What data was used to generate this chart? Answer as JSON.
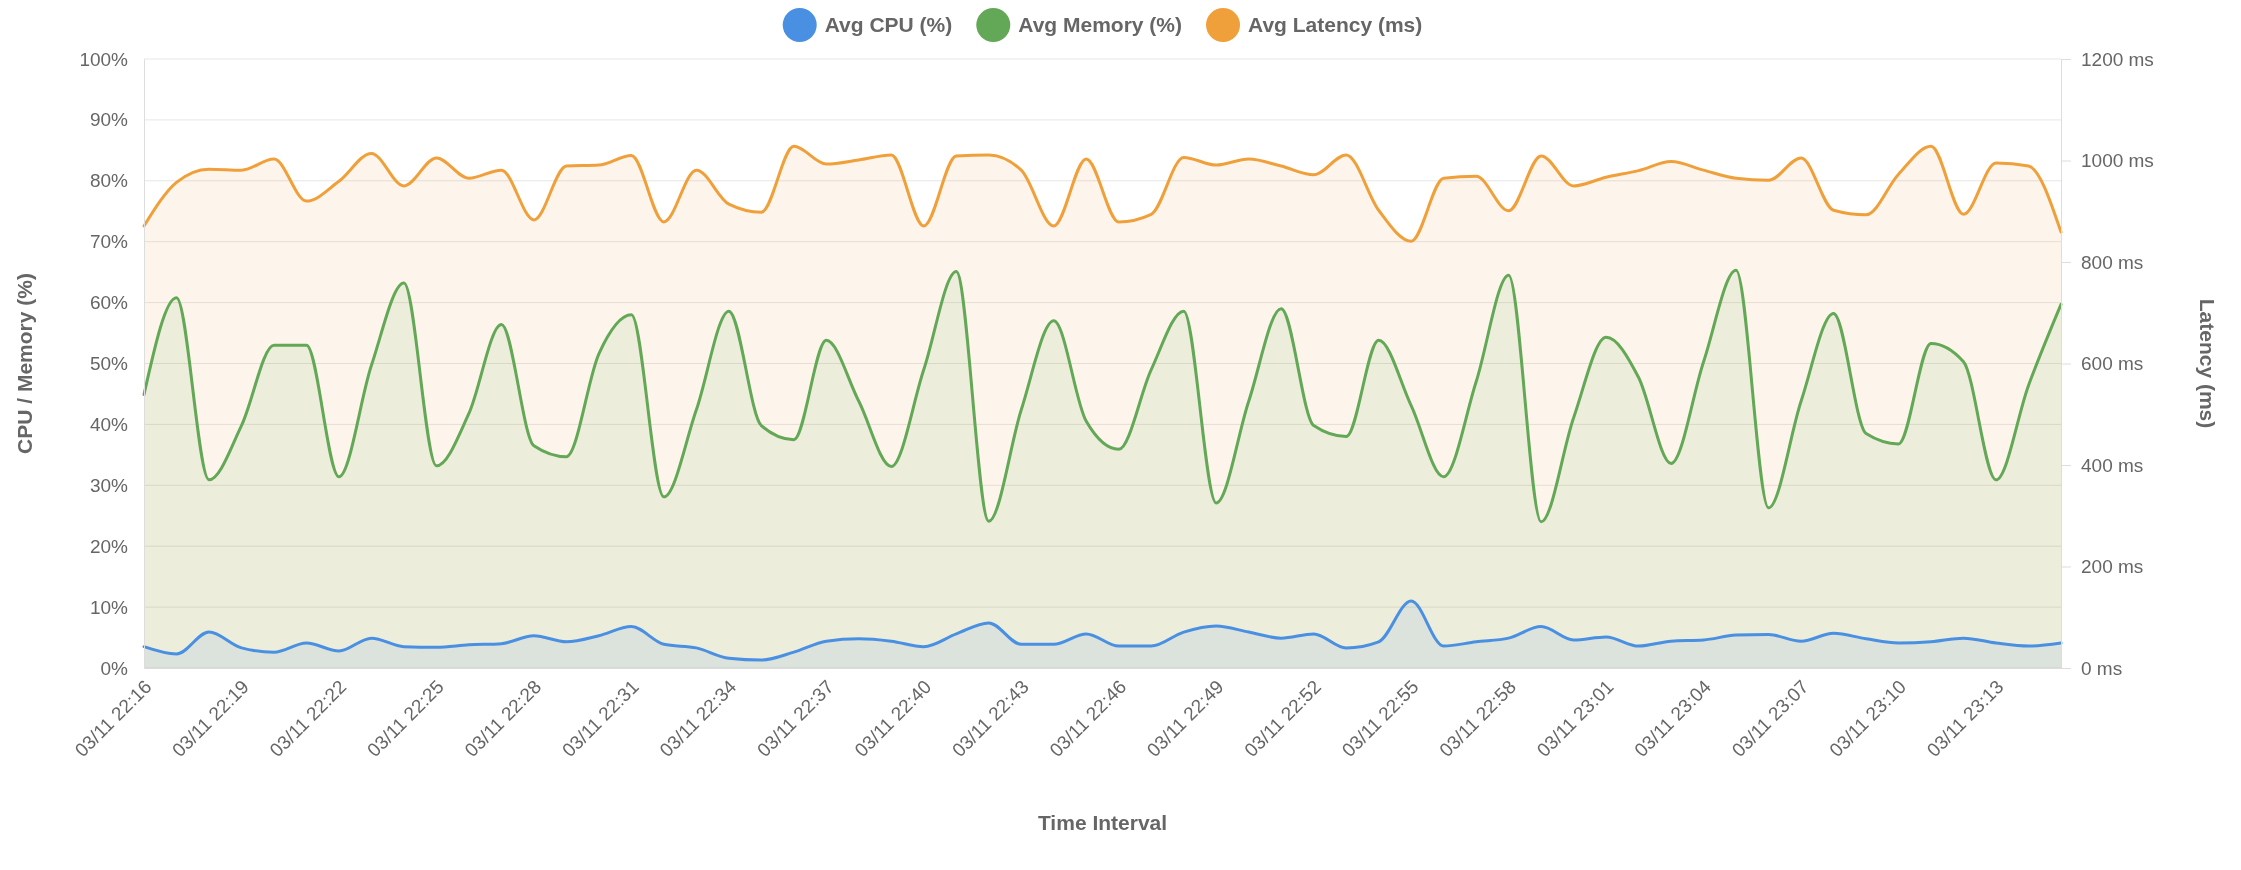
{
  "chart_data": {
    "type": "area",
    "xlabel": "Time Interval",
    "ylabel": "CPU / Memory (%)",
    "y2label": "Latency (ms)",
    "categories": [
      "03/11 22:16",
      null,
      null,
      "03/11 22:19",
      null,
      null,
      "03/11 22:22",
      null,
      null,
      "03/11 22:25",
      null,
      null,
      "03/11 22:28",
      null,
      null,
      "03/11 22:31",
      null,
      null,
      "03/11 22:34",
      null,
      null,
      "03/11 22:37",
      null,
      null,
      "03/11 22:40",
      null,
      null,
      "03/11 22:43",
      null,
      null,
      "03/11 22:46",
      null,
      null,
      "03/11 22:49",
      null,
      null,
      "03/11 22:52",
      null,
      null,
      "03/11 22:55",
      null,
      null,
      "03/11 22:58",
      null,
      null,
      "03/11 23:01",
      null,
      null,
      "03/11 23:04",
      null,
      null,
      "03/11 23:07",
      null,
      null,
      "03/11 23:10",
      null,
      null,
      "03/11 23:13",
      null,
      null
    ],
    "series": [
      {
        "name": "Avg CPU (%)",
        "color": "#4a90e2",
        "values": [
          3.5,
          2.3,
          5.9,
          3.3,
          2.6,
          4.1,
          2.8,
          4.9,
          3.5,
          3.4,
          3.8,
          4.0,
          5.3,
          4.3,
          5.3,
          6.8,
          3.9,
          3.3,
          1.6,
          1.3,
          2.6,
          4.4,
          4.8,
          4.4,
          3.5,
          5.6,
          7.4,
          3.9,
          3.9,
          5.6,
          3.6,
          3.6,
          5.9,
          6.9,
          5.9,
          4.9,
          5.6,
          3.3,
          4.3,
          11.0,
          3.6,
          4.3,
          4.9,
          6.8,
          4.6,
          5.1,
          3.6,
          4.4,
          4.6,
          5.4,
          5.5,
          4.4,
          5.7,
          4.8,
          4.1,
          4.3,
          4.9,
          4.1,
          3.6,
          4.1
        ]
      },
      {
        "name": "Avg Memory (%)",
        "color": "#63a856",
        "values": [
          44.9,
          60.8,
          30.9,
          39.8,
          53,
          53,
          31.4,
          49.7,
          63.2,
          33.2,
          41.8,
          56.4,
          36.5,
          34.7,
          51.6,
          58,
          28.1,
          42.4,
          58.6,
          39.8,
          37.5,
          53.8,
          43.8,
          33.1,
          49,
          65.1,
          24.1,
          42.4,
          57,
          40.5,
          35.9,
          49,
          58.6,
          27.1,
          43.8,
          59,
          39.8,
          38,
          53.8,
          43.1,
          31.4,
          47,
          64.5,
          24,
          41.1,
          54.3,
          47.7,
          33.6,
          50.3,
          65.3,
          26.3,
          43.8,
          58.2,
          38.5,
          36.8,
          53.3,
          50.3,
          30.9,
          46.4,
          59.7
        ]
      },
      {
        "name": "Avg Latency (ms)",
        "color": "#f0a03a",
        "axis": "y2",
        "values": [
          871,
          957,
          983,
          981,
          1003,
          920,
          959,
          1014,
          950,
          1005,
          965,
          981,
          883,
          989,
          991,
          1010,
          879,
          981,
          914,
          898,
          1028,
          993,
          1001,
          1011,
          871,
          1009,
          1011,
          981,
          871,
          1003,
          879,
          894,
          1006,
          991,
          1003,
          989,
          972,
          1011,
          902,
          841,
          965,
          969,
          901,
          1009,
          950,
          967,
          980,
          998,
          981,
          965,
          961,
          1005,
          902,
          893,
          973,
          1028,
          894,
          995,
          989,
          859
        ]
      }
    ],
    "ylim": [
      0,
      100
    ],
    "yticks": [
      {
        "value": 0,
        "label": "0%"
      },
      {
        "value": 10,
        "label": "10%"
      },
      {
        "value": 20,
        "label": "20%"
      },
      {
        "value": 30,
        "label": "30%"
      },
      {
        "value": 40,
        "label": "40%"
      },
      {
        "value": 50,
        "label": "50%"
      },
      {
        "value": 60,
        "label": "60%"
      },
      {
        "value": 70,
        "label": "70%"
      },
      {
        "value": 80,
        "label": "80%"
      },
      {
        "value": 90,
        "label": "90%"
      },
      {
        "value": 100,
        "label": "100%"
      }
    ],
    "y2lim": [
      0,
      1200
    ],
    "y2ticks": [
      {
        "value": 0,
        "label": "0 ms"
      },
      {
        "value": 200,
        "label": "200 ms"
      },
      {
        "value": 400,
        "label": "400 ms"
      },
      {
        "value": 600,
        "label": "600 ms"
      },
      {
        "value": 800,
        "label": "800 ms"
      },
      {
        "value": 1000,
        "label": "1000 ms"
      },
      {
        "value": 1200,
        "label": "1200 ms"
      }
    ],
    "grid": "y",
    "legend": "top",
    "marker": "none",
    "line_style": "solid"
  }
}
